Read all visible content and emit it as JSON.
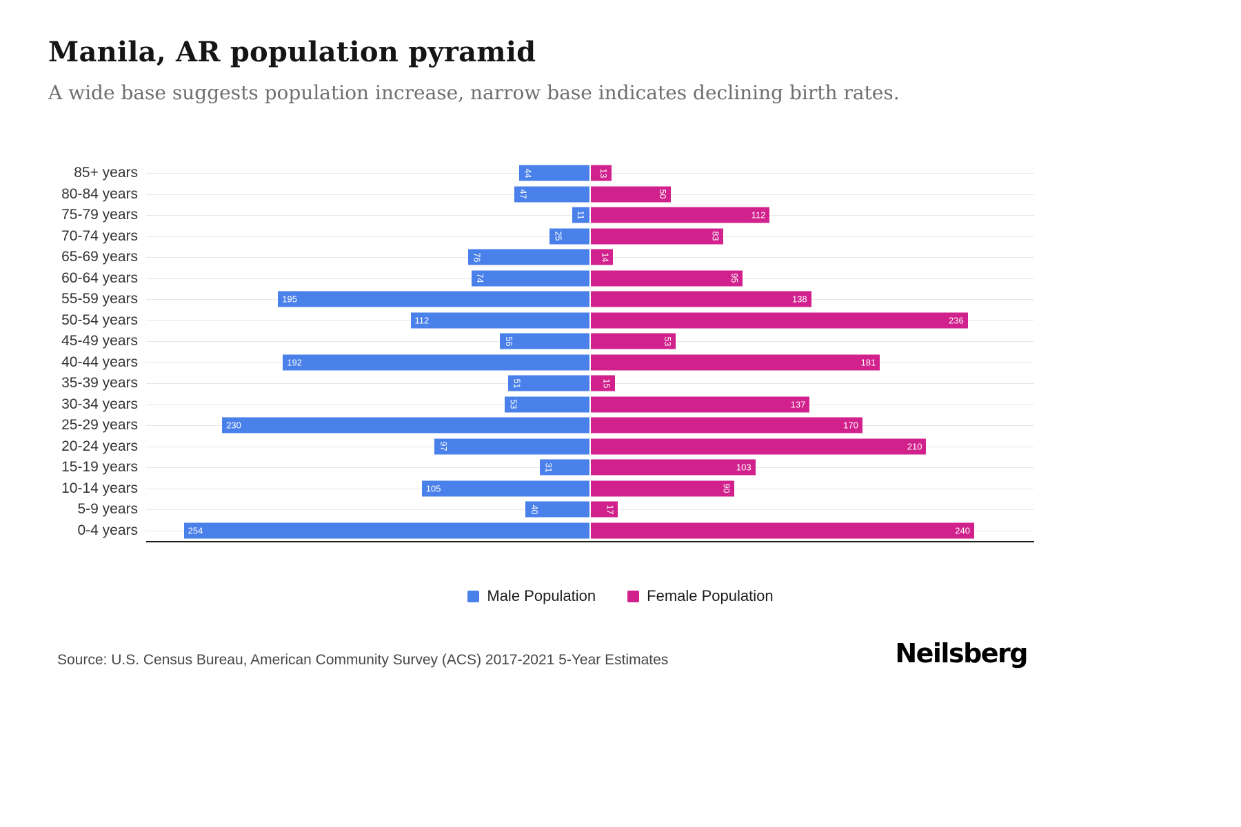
{
  "header": {
    "title": "Manila, AR population pyramid",
    "subtitle": "A wide base suggests population increase, narrow base indicates declining birth rates."
  },
  "chart_data": {
    "type": "bar",
    "variant": "population-pyramid",
    "orientation": "horizontal",
    "title": "Manila, AR population pyramid",
    "categories": [
      "85+ years",
      "80-84 years",
      "75-79 years",
      "70-74 years",
      "65-69 years",
      "60-64 years",
      "55-59 years",
      "50-54 years",
      "45-49 years",
      "40-44 years",
      "35-39 years",
      "30-34 years",
      "25-29 years",
      "20-24 years",
      "15-19 years",
      "10-14 years",
      "5-9 years",
      "0-4 years"
    ],
    "series": [
      {
        "name": "Male Population",
        "color": "#4A80EA",
        "values": [
          44,
          47,
          11,
          25,
          76,
          74,
          195,
          112,
          56,
          192,
          51,
          53,
          230,
          97,
          31,
          105,
          40,
          254
        ]
      },
      {
        "name": "Female Population",
        "color": "#D1218C",
        "values": [
          13,
          50,
          112,
          83,
          14,
          95,
          138,
          236,
          53,
          181,
          15,
          137,
          170,
          210,
          103,
          90,
          17,
          240
        ]
      }
    ],
    "axis_max_per_side": 278,
    "x_axis_ticks_visible": false,
    "grid": "horizontal",
    "legend_position": "bottom",
    "value_labels": "inside-bar-end, rotated when value < 100"
  },
  "footer": {
    "source": "Source: U.S. Census Bureau, American Community Survey (ACS) 2017-2021 5-Year Estimates",
    "brand": "Neilsberg"
  }
}
